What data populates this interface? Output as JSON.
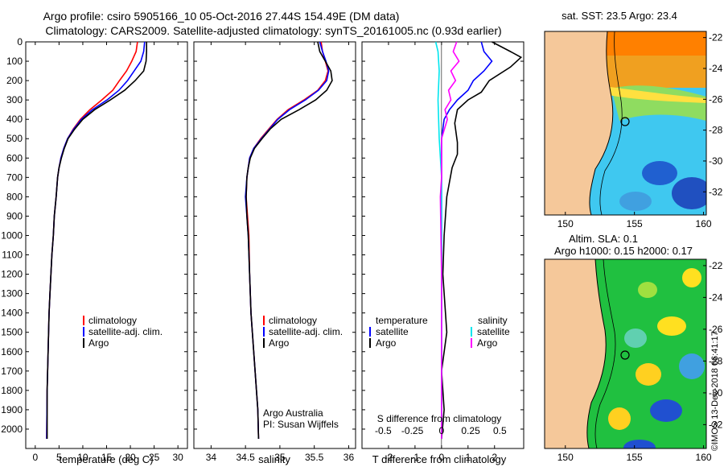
{
  "title_line1": "Argo profile: csiro 5905166_10 05-Oct-2016 27.44S 154.49E (DM data)",
  "title_line2": "Climatology: CARS2009. Satellite-adjusted climatology: synTS_20161005.nc (0.93d earlier)",
  "colors": {
    "climatology": "#ff0000",
    "satellite": "#0000ff",
    "argo": "#000000",
    "sat_salinity": "#00e5ee",
    "argo_salinity": "#ff00ff"
  },
  "chart_data": [
    {
      "type": "line",
      "id": "temperature",
      "xlabel": "temperature (deg C)",
      "ylabel": "",
      "xlim": [
        -2,
        32
      ],
      "ylim": [
        0,
        2100
      ],
      "y_inverted": true,
      "xticks": [
        0,
        5,
        10,
        15,
        20,
        25,
        30
      ],
      "yticks": [
        0,
        100,
        200,
        300,
        400,
        500,
        600,
        700,
        800,
        900,
        1000,
        1100,
        1200,
        1300,
        1400,
        1500,
        1600,
        1700,
        1800,
        1900,
        2000
      ],
      "legend": [
        "climatology",
        "satellite-adj. clim.",
        "Argo"
      ],
      "series": [
        {
          "name": "climatology",
          "color": "#ff0000",
          "x": [
            21.5,
            21.2,
            20.3,
            19.2,
            17.7,
            16.3,
            14.0,
            11.5,
            9.5,
            8.0,
            6.8,
            6.0,
            5.4,
            5.0,
            4.7,
            4.4,
            4.0,
            3.8,
            3.5,
            3.3,
            3.1,
            2.9,
            2.8,
            2.7,
            2.6,
            2.5,
            2.4
          ],
          "y": [
            0,
            50,
            100,
            150,
            200,
            250,
            300,
            350,
            400,
            450,
            500,
            550,
            600,
            650,
            700,
            800,
            900,
            1000,
            1100,
            1200,
            1300,
            1400,
            1500,
            1600,
            1700,
            1800,
            2050
          ]
        },
        {
          "name": "satellite-adj. clim.",
          "color": "#0000ff",
          "x": [
            23.0,
            22.8,
            22.2,
            20.8,
            19.4,
            17.6,
            15.1,
            12.0,
            9.7,
            8.1,
            6.8,
            6.0,
            5.4,
            5.0,
            4.7,
            4.4,
            4.0,
            3.8,
            3.5,
            3.3,
            3.1,
            2.9,
            2.8,
            2.7,
            2.6,
            2.5,
            2.4
          ],
          "y": [
            0,
            50,
            100,
            150,
            200,
            250,
            300,
            350,
            400,
            450,
            500,
            550,
            600,
            650,
            700,
            800,
            900,
            1000,
            1100,
            1200,
            1300,
            1400,
            1500,
            1600,
            1700,
            1800,
            2050
          ]
        },
        {
          "name": "Argo",
          "color": "#000000",
          "x": [
            23.4,
            23.4,
            23.3,
            22.8,
            21.0,
            18.8,
            15.8,
            12.5,
            10.0,
            8.3,
            6.9,
            6.1,
            5.5,
            5.0,
            4.7,
            4.4,
            4.0,
            3.8,
            3.5,
            3.3,
            3.1,
            2.9,
            2.8,
            2.7,
            2.6,
            2.5,
            2.5
          ],
          "y": [
            0,
            50,
            100,
            150,
            200,
            250,
            300,
            350,
            400,
            450,
            500,
            550,
            600,
            650,
            700,
            800,
            900,
            1000,
            1100,
            1200,
            1300,
            1400,
            1500,
            1600,
            1700,
            1800,
            2050
          ]
        }
      ]
    },
    {
      "type": "line",
      "id": "salinity",
      "xlabel": "salinity",
      "xlim": [
        33.75,
        36.1
      ],
      "ylim": [
        0,
        2100
      ],
      "y_inverted": true,
      "xticks": [
        34,
        34.5,
        35,
        35.5,
        36
      ],
      "legend": [
        "climatology",
        "satellite-adj. clim.",
        "Argo"
      ],
      "annotation_line1": "Argo Australia",
      "annotation_line2": "PI: Susan Wijffels",
      "series": [
        {
          "name": "climatology",
          "color": "#ff0000",
          "x": [
            35.6,
            35.62,
            35.66,
            35.7,
            35.66,
            35.55,
            35.35,
            35.12,
            34.96,
            34.84,
            34.72,
            34.62,
            34.56,
            34.54,
            34.52,
            34.51,
            34.53,
            34.55,
            34.56,
            34.58,
            34.6,
            34.62,
            34.64,
            34.66,
            34.68,
            34.69
          ],
          "y": [
            0,
            50,
            100,
            150,
            200,
            250,
            300,
            350,
            400,
            450,
            500,
            550,
            600,
            650,
            700,
            800,
            900,
            1000,
            1200,
            1400,
            1500,
            1600,
            1700,
            1800,
            1900,
            2050
          ]
        },
        {
          "name": "satellite-adj. clim.",
          "color": "#0000ff",
          "x": [
            35.58,
            35.62,
            35.67,
            35.71,
            35.68,
            35.56,
            35.37,
            35.14,
            34.97,
            34.85,
            34.73,
            34.62,
            34.56,
            34.54,
            34.52,
            34.5,
            34.52,
            34.54,
            34.56,
            34.58,
            34.6,
            34.62,
            34.64,
            34.66,
            34.68,
            34.69
          ],
          "y": [
            0,
            50,
            100,
            150,
            200,
            250,
            300,
            350,
            400,
            450,
            500,
            550,
            600,
            650,
            700,
            800,
            900,
            1000,
            1200,
            1400,
            1500,
            1600,
            1700,
            1800,
            1900,
            2050
          ]
        },
        {
          "name": "Argo",
          "color": "#000000",
          "x": [
            35.55,
            35.58,
            35.66,
            35.74,
            35.76,
            35.68,
            35.52,
            35.28,
            35.02,
            34.86,
            34.74,
            34.63,
            34.57,
            34.54,
            34.52,
            34.51,
            34.52,
            34.54,
            34.56,
            34.58,
            34.6,
            34.62,
            34.64,
            34.66,
            34.68,
            34.69
          ],
          "y": [
            0,
            50,
            100,
            150,
            200,
            250,
            300,
            350,
            400,
            450,
            500,
            550,
            600,
            650,
            700,
            800,
            900,
            1000,
            1200,
            1400,
            1500,
            1600,
            1700,
            1800,
            1900,
            2050
          ]
        }
      ]
    },
    {
      "type": "line",
      "id": "differences",
      "xlabel": "T difference from climatology",
      "xlabel_top": "S difference from climatology",
      "xlim": [
        -3,
        3.1
      ],
      "ylim": [
        0,
        2100
      ],
      "y_inverted": true,
      "xticks": [
        -2,
        -1,
        0,
        1,
        2
      ],
      "xticks_top": [
        "-0.5",
        "-0.25",
        "0",
        "0.25",
        "0.5"
      ],
      "legend_temperature_title": "temperature",
      "legend_salinity_title": "salinity",
      "legend_temperature": [
        "satellite",
        "Argo"
      ],
      "legend_salinity": [
        "satellite",
        "Argo"
      ],
      "series": [
        {
          "name": "T satellite",
          "color": "#0000ff",
          "x": [
            1.5,
            1.6,
            1.9,
            1.6,
            1.2,
            1.0,
            0.6,
            0.3,
            0.1,
            0.05,
            0.0,
            0.0,
            0.0,
            0.0,
            0.0,
            0.0,
            0.0,
            0.0
          ],
          "y": [
            0,
            50,
            100,
            150,
            200,
            250,
            300,
            350,
            400,
            450,
            500,
            600,
            800,
            1000,
            1200,
            1500,
            1800,
            2050
          ]
        },
        {
          "name": "T Argo",
          "color": "#000000",
          "x": [
            1.9,
            2.6,
            3.0,
            2.6,
            1.8,
            1.5,
            1.0,
            0.6,
            0.5,
            0.6,
            0.6,
            0.4,
            0.2,
            0.1,
            0.05,
            0.2,
            0.0,
            0.1,
            0.0
          ],
          "y": [
            0,
            50,
            80,
            130,
            200,
            260,
            300,
            350,
            420,
            520,
            580,
            650,
            800,
            1000,
            1200,
            1500,
            1700,
            1900,
            2050
          ]
        },
        {
          "name": "S satellite",
          "color": "#00e5ee",
          "x": [
            -0.05,
            -0.03,
            -0.02,
            -0.03,
            -0.02,
            0.0,
            0.0,
            0.0,
            0.0,
            0.0
          ],
          "y": [
            0,
            50,
            150,
            300,
            500,
            700,
            1000,
            1400,
            1800,
            2050
          ]
        },
        {
          "name": "S Argo",
          "color": "#ff00ff",
          "x": [
            0.13,
            0.1,
            0.15,
            0.08,
            0.12,
            0.06,
            0.08,
            0.03,
            0.05,
            0.0,
            0.0,
            -0.01,
            0.0,
            0.0
          ],
          "y": [
            0,
            50,
            100,
            150,
            200,
            250,
            300,
            350,
            400,
            500,
            700,
            800,
            1200,
            2050
          ]
        }
      ]
    },
    {
      "type": "heatmap",
      "id": "sst_map",
      "title": "sat. SST: 23.5 Argo: 23.4",
      "xticks": [
        150,
        155,
        160
      ],
      "yticks": [
        -22,
        -24,
        -26,
        -28,
        -30,
        -32
      ],
      "xlim": [
        148.5,
        160.2
      ],
      "ylim": [
        -33.5,
        -21.6
      ],
      "argo_position": {
        "lon": 154.49,
        "lat": -27.44
      }
    },
    {
      "type": "heatmap",
      "id": "sla_map",
      "title_line1": "Altim. SLA: 0.1",
      "title_line2": "Argo h1000: 0.15 h2000: 0.17",
      "xticks": [
        150,
        155,
        160
      ],
      "yticks": [
        -22,
        -24,
        -26,
        -28,
        -30,
        -32
      ],
      "xlim": [
        148.5,
        160.2
      ],
      "ylim": [
        -33.5,
        -21.6
      ],
      "argo_position": {
        "lon": 154.49,
        "lat": -27.44
      }
    }
  ],
  "credit": "©IMOS 13-Dec-2018 06:41:17"
}
